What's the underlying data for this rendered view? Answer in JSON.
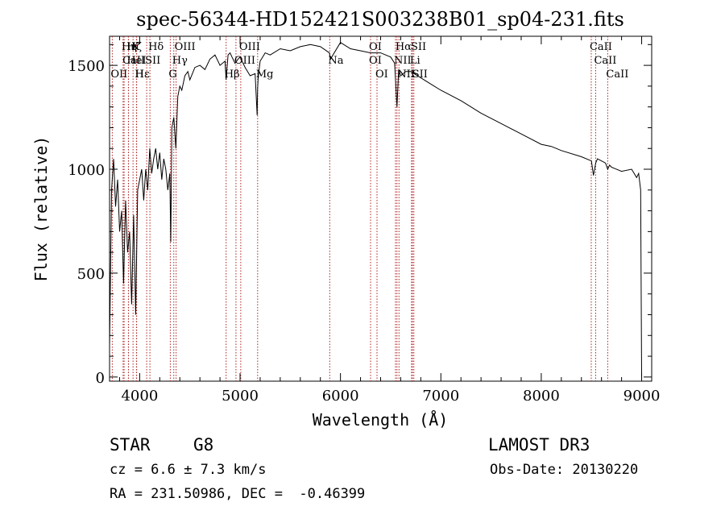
{
  "chart_data": {
    "type": "line",
    "title": "spec-56344-HD152421S003238B01_sp04-231.fits",
    "xlabel": "Wavelength (Å)",
    "ylabel": "Flux (relative)",
    "xlim": [
      3700,
      9100
    ],
    "ylim": [
      -20,
      1640
    ],
    "x_ticks": [
      4000,
      5000,
      6000,
      7000,
      8000,
      9000
    ],
    "y_ticks": [
      0,
      500,
      1000,
      1500
    ],
    "series": [
      {
        "name": "flux",
        "x": [
          3700,
          3720,
          3740,
          3760,
          3780,
          3800,
          3820,
          3840,
          3860,
          3880,
          3900,
          3920,
          3940,
          3960,
          3980,
          4000,
          4020,
          4040,
          4060,
          4080,
          4100,
          4120,
          4140,
          4160,
          4180,
          4200,
          4220,
          4240,
          4260,
          4280,
          4300,
          4310,
          4320,
          4340,
          4360,
          4380,
          4400,
          4420,
          4450,
          4480,
          4500,
          4550,
          4600,
          4650,
          4700,
          4750,
          4800,
          4850,
          4861,
          4880,
          4900,
          4920,
          4950,
          4980,
          5000,
          5050,
          5100,
          5150,
          5170,
          5175,
          5180,
          5200,
          5250,
          5300,
          5400,
          5500,
          5600,
          5700,
          5800,
          5890,
          5900,
          6000,
          6100,
          6200,
          6300,
          6400,
          6500,
          6540,
          6563,
          6580,
          6600,
          6650,
          6700,
          6800,
          6900,
          7000,
          7200,
          7400,
          7600,
          7800,
          8000,
          8100,
          8200,
          8400,
          8500,
          8520,
          8542,
          8560,
          8600,
          8640,
          8662,
          8680,
          8700,
          8800,
          8900,
          8950,
          8970,
          8990,
          9000
        ],
        "y": [
          150,
          900,
          1050,
          820,
          950,
          700,
          800,
          450,
          850,
          600,
          700,
          350,
          780,
          300,
          900,
          950,
          1000,
          850,
          1000,
          900,
          1100,
          980,
          1050,
          1100,
          1000,
          1080,
          950,
          1050,
          1000,
          900,
          980,
          650,
          1200,
          1250,
          1100,
          1350,
          1400,
          1380,
          1450,
          1470,
          1430,
          1490,
          1500,
          1480,
          1530,
          1550,
          1500,
          1520,
          1430,
          1550,
          1560,
          1540,
          1510,
          1530,
          1540,
          1490,
          1450,
          1460,
          1260,
          1390,
          1440,
          1520,
          1560,
          1550,
          1580,
          1570,
          1590,
          1600,
          1590,
          1560,
          1530,
          1610,
          1580,
          1570,
          1560,
          1560,
          1540,
          1510,
          1300,
          1480,
          1450,
          1470,
          1470,
          1440,
          1410,
          1380,
          1330,
          1270,
          1220,
          1170,
          1120,
          1110,
          1090,
          1060,
          1040,
          970,
          1030,
          1050,
          1040,
          1030,
          1000,
          1020,
          1010,
          990,
          1000,
          960,
          980,
          900,
          0
        ]
      }
    ],
    "lines": [
      {
        "name": "Hη",
        "w": 3835,
        "row": 0
      },
      {
        "name": "CaII",
        "w": 3845,
        "row": 1
      },
      {
        "name": "OII",
        "w": 3727,
        "row": 2
      },
      {
        "name": "Hζ",
        "w": 3889,
        "row": 0
      },
      {
        "name": "HeI",
        "w": 3888,
        "row": 1
      },
      {
        "name": "Hε",
        "w": 3970,
        "row": 2
      },
      {
        "name": "K",
        "w": 3934,
        "row": 0
      },
      {
        "name": "SII",
        "w": 4070,
        "row": 1
      },
      {
        "name": "H",
        "w": 3968,
        "row": 2
      },
      {
        "name": "Hδ",
        "w": 4102,
        "row": 0
      },
      {
        "name": "OIII",
        "w": 4363,
        "row": 0
      },
      {
        "name": "Hγ",
        "w": 4340,
        "row": 1
      },
      {
        "name": "G",
        "w": 4305,
        "row": 2
      },
      {
        "name": "OIII",
        "w": 5007,
        "row": 0
      },
      {
        "name": "OIII",
        "w": 4959,
        "row": 1
      },
      {
        "name": "Hβ",
        "w": 4861,
        "row": 2
      },
      {
        "name": "Mg",
        "w": 5175,
        "row": 2
      },
      {
        "name": "Na",
        "w": 5893,
        "row": 1
      },
      {
        "name": "OI",
        "w": 6300,
        "row": 0
      },
      {
        "name": "OI",
        "w": 6300,
        "row": 1
      },
      {
        "name": "OI",
        "w": 6364,
        "row": 2
      },
      {
        "name": "Hα",
        "w": 6563,
        "row": 0
      },
      {
        "name": "NII",
        "w": 6548,
        "row": 1
      },
      {
        "name": "NII",
        "w": 6583,
        "row": 2
      },
      {
        "name": "SII",
        "w": 6717,
        "row": 0
      },
      {
        "name": "Li",
        "w": 6708,
        "row": 1
      },
      {
        "name": "SII",
        "w": 6731,
        "row": 2
      },
      {
        "name": "CaII",
        "w": 8498,
        "row": 0
      },
      {
        "name": "CaII",
        "w": 8542,
        "row": 1
      },
      {
        "name": "CaII",
        "w": 8662,
        "row": 2
      }
    ],
    "line_color": "#b02020"
  },
  "footer": {
    "object": "STAR",
    "subclass": "G8",
    "survey": "LAMOST DR3",
    "cz": "cz = 6.6 ± 7.3 km/s",
    "obs_date": "Obs-Date: 20130220",
    "radec": "RA = 231.50986, DEC =  -0.46399"
  }
}
